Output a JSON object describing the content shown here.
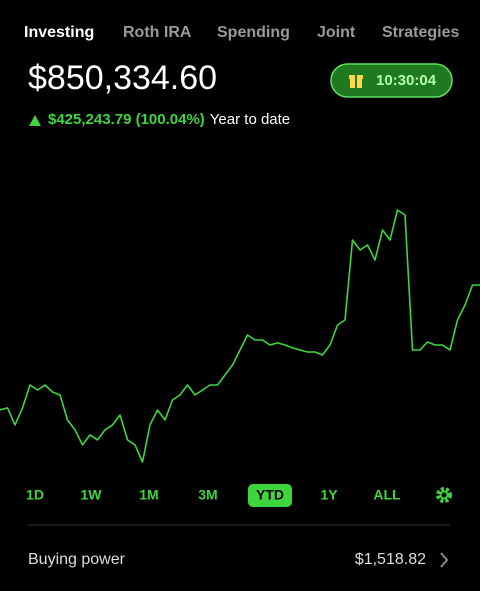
{
  "tabs": [
    "Investing",
    "Roth IRA",
    "Spending",
    "Joint",
    "Strategies"
  ],
  "balance": "$850,334.60",
  "timer": "10:30:04",
  "change": {
    "amount": "$425,243.79 (100.04%)",
    "period": "Year to date"
  },
  "chart_data": {
    "type": "line",
    "color": "#3dd63d",
    "values": [
      425000,
      432000,
      374000,
      432000,
      510000,
      493000,
      510000,
      486000,
      476000,
      391000,
      357000,
      306000,
      340000,
      323000,
      357000,
      374000,
      408000,
      323000,
      306000,
      248000,
      374000,
      425000,
      391000,
      459000,
      476000,
      510000,
      476000,
      493000,
      510000,
      510000,
      544000,
      578000,
      629000,
      680000,
      663000,
      663000,
      646000,
      653000,
      646000,
      636000,
      629000,
      622000,
      622000,
      612000,
      646000,
      714000,
      731000,
      1003000,
      969000,
      986000,
      935000,
      1037000,
      1003000,
      1105000,
      1088000,
      629000,
      629000,
      656000,
      646000,
      646000,
      629000,
      731000,
      782000,
      850000,
      850000
    ]
  },
  "ranges": [
    "1D",
    "1W",
    "1M",
    "3M",
    "YTD",
    "1Y",
    "ALL"
  ],
  "selected_range": 4,
  "buying_power": {
    "label": "Buying power",
    "value": "$1,518.82"
  }
}
